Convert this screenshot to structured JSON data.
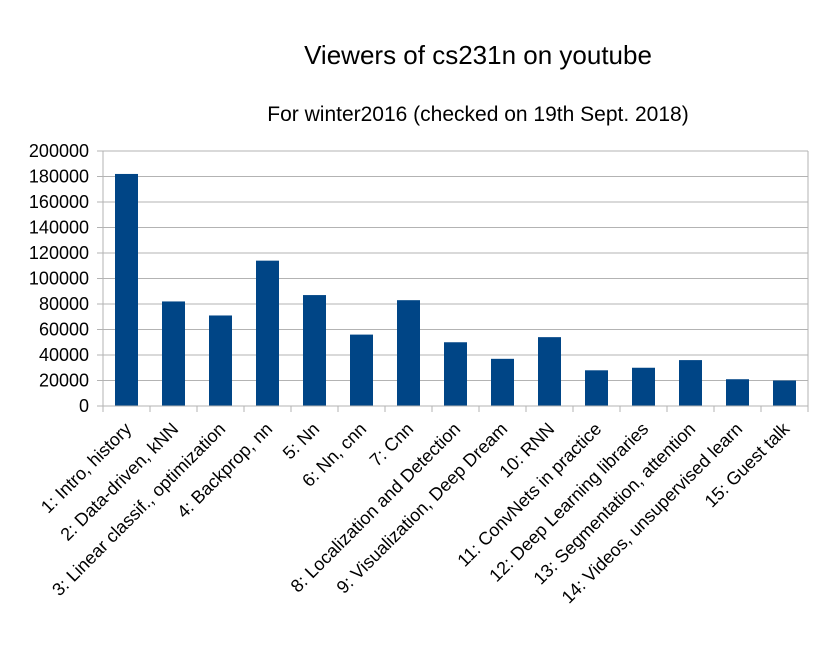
{
  "chart_data": {
    "type": "bar",
    "title": "Viewers of cs231n on youtube",
    "subtitle": "For winter2016 (checked on 19th Sept. 2018)",
    "xlabel": "",
    "ylabel": "",
    "ylim": [
      0,
      200000
    ],
    "yticks": [
      0,
      20000,
      40000,
      60000,
      80000,
      100000,
      120000,
      140000,
      160000,
      180000,
      200000
    ],
    "grid": true,
    "legend": "none",
    "bar_color": "#004586",
    "categories": [
      "1: Intro, history",
      "2: Data-driven, kNN",
      "3: Linear classif., optimization",
      "4: Backprop, nn",
      "5: Nn",
      "6: Nn, cnn",
      "7: Cnn",
      "8: Localization and Detection",
      "9: Visualization, Deep Dream",
      "10: RNN",
      "11: ConvNets in practice",
      "12: Deep Learning libraries",
      "13: Segmentation, attention",
      "14: Videos, unsupervised learn",
      "15: Guest talk"
    ],
    "values": [
      182000,
      82000,
      71000,
      114000,
      87000,
      56000,
      83000,
      50000,
      37000,
      54000,
      28000,
      30000,
      36000,
      21000,
      20000
    ]
  }
}
